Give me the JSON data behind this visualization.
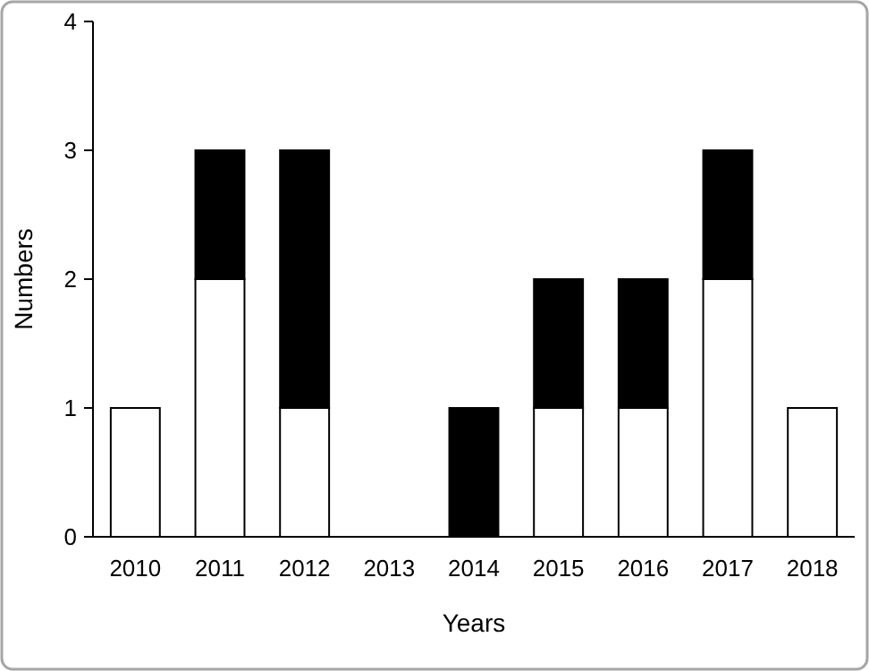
{
  "chart_data": {
    "type": "bar",
    "stacked": true,
    "xlabel": "Years",
    "ylabel": "Numbers",
    "categories": [
      "2010",
      "2011",
      "2012",
      "2013",
      "2014",
      "2015",
      "2016",
      "2017",
      "2018"
    ],
    "series": [
      {
        "color": "#ffffff",
        "values": [
          1,
          2,
          1,
          0,
          0,
          1,
          1,
          2,
          1
        ]
      },
      {
        "color": "#000000",
        "values": [
          0,
          1,
          2,
          0,
          1,
          1,
          1,
          1,
          0
        ]
      }
    ],
    "ylim": [
      0,
      4
    ],
    "yticks": [
      0,
      1,
      2,
      3,
      4
    ],
    "grid": false
  }
}
